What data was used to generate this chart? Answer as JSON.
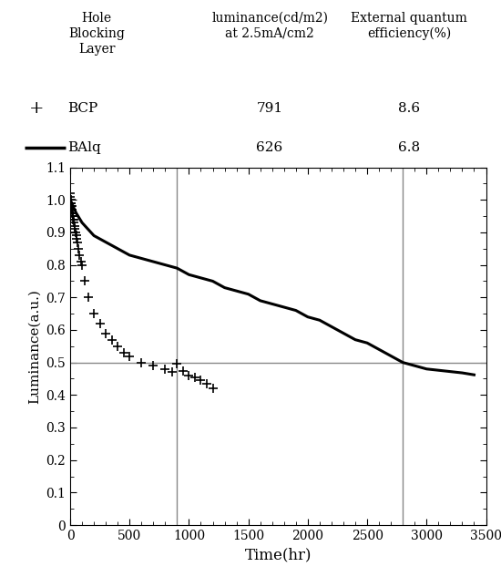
{
  "xlabel": "Time(hr)",
  "ylabel": "Luminance(a.u.)",
  "xlim": [
    0,
    3500
  ],
  "ylim": [
    0,
    1.1
  ],
  "xticks": [
    0,
    500,
    1000,
    1500,
    2000,
    2500,
    3000,
    3500
  ],
  "yticks": [
    0,
    0.1,
    0.2,
    0.3,
    0.4,
    0.5,
    0.6,
    0.7,
    0.8,
    0.9,
    1.0,
    1.1
  ],
  "ytick_labels": [
    "0",
    "0.1",
    "0.2",
    "0.3",
    "0.4",
    "0.5",
    "0.6",
    "0.7",
    "0.8",
    "0.9",
    "1.0",
    "1.1"
  ],
  "half_line_y": 0.5,
  "bcp_vline_x": 900,
  "balq_vline_x": 2800,
  "line_color": "#000000",
  "vline_color": "#888888",
  "hline_color": "#888888",
  "header_col1": "Hole\nBlocking\nLayer",
  "header_col2": "luminance(cd/m2)\nat 2.5mA/cm2",
  "header_col3": "External quantum\nefficiency(%)",
  "bcp_label": "BCP",
  "bcp_lum": "791",
  "bcp_eff": "8.6",
  "balq_label": "BAlq",
  "balq_lum": "626",
  "balq_eff": "6.8",
  "bcp_t": [
    0,
    2,
    4,
    6,
    8,
    10,
    12,
    14,
    16,
    18,
    20,
    22,
    24,
    26,
    28,
    30,
    35,
    40,
    45,
    50,
    55,
    60,
    70,
    80,
    90,
    100,
    120,
    150,
    200,
    250,
    300,
    350,
    400,
    450,
    500,
    600,
    700,
    800,
    860,
    900,
    950,
    1000,
    1050,
    1100,
    1150,
    1200
  ],
  "bcp_y": [
    1.02,
    1.01,
    1.0,
    0.99,
    0.99,
    0.98,
    0.98,
    0.97,
    0.97,
    0.96,
    0.96,
    0.95,
    0.95,
    0.94,
    0.94,
    0.93,
    0.92,
    0.91,
    0.9,
    0.89,
    0.88,
    0.87,
    0.85,
    0.83,
    0.81,
    0.8,
    0.75,
    0.7,
    0.65,
    0.62,
    0.59,
    0.57,
    0.55,
    0.53,
    0.52,
    0.5,
    0.49,
    0.48,
    0.47,
    0.495,
    0.475,
    0.46,
    0.455,
    0.445,
    0.435,
    0.42
  ],
  "balq_t": [
    0,
    50,
    100,
    150,
    200,
    300,
    400,
    500,
    600,
    700,
    800,
    900,
    1000,
    1100,
    1200,
    1300,
    1400,
    1500,
    1600,
    1700,
    1800,
    1900,
    2000,
    2100,
    2200,
    2300,
    2400,
    2500,
    2600,
    2700,
    2800,
    2900,
    3000,
    3100,
    3200,
    3300,
    3400
  ],
  "balq_y": [
    1.0,
    0.96,
    0.93,
    0.91,
    0.89,
    0.87,
    0.85,
    0.83,
    0.82,
    0.81,
    0.8,
    0.79,
    0.77,
    0.76,
    0.75,
    0.73,
    0.72,
    0.71,
    0.69,
    0.68,
    0.67,
    0.66,
    0.64,
    0.63,
    0.61,
    0.59,
    0.57,
    0.56,
    0.54,
    0.52,
    0.5,
    0.49,
    0.48,
    0.476,
    0.472,
    0.468,
    0.462
  ],
  "figsize": [
    5.5,
    6.33
  ],
  "dpi": 100
}
